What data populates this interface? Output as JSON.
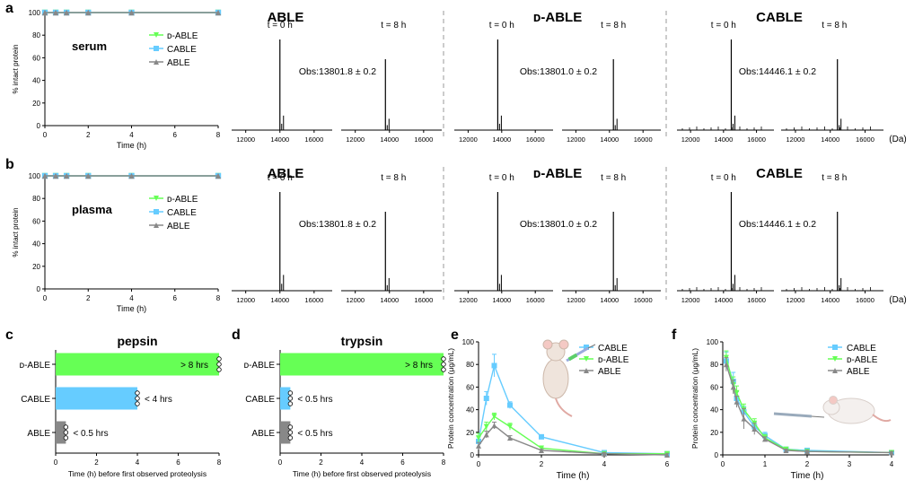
{
  "panel_letters": [
    "a",
    "b",
    "c",
    "d",
    "e",
    "f"
  ],
  "stability_panels": [
    {
      "condition": "serum",
      "legend": [
        "ᴅ-ABLE",
        "CABLE",
        "ABLE"
      ],
      "y_label": "% intact protein",
      "x_label": "Time (h)",
      "y_ticks": [
        "100",
        "80",
        "60",
        "40",
        "20",
        "0"
      ],
      "x_ticks": [
        "0",
        "2",
        "4",
        "6",
        "8"
      ],
      "ms_titles": [
        "ABLE",
        "ᴅ-ABLE",
        "CABLE"
      ],
      "time_labels": [
        "t = 0 h",
        "t = 8 h"
      ],
      "obs": [
        "Obs:13801.8 ± 0.2",
        "Obs:13801.0 ± 0.2",
        "Obs:14446.1 ± 0.2"
      ],
      "ms_ticks": [
        [
          "12000",
          "14000",
          "16000"
        ],
        [
          "12000",
          "14000",
          "16000"
        ],
        [
          "12000",
          "14000",
          "16000"
        ],
        [
          "12000",
          "14000",
          "16000"
        ],
        [
          "12000",
          "14000",
          "16000"
        ],
        [
          "12000",
          "14000",
          "16000"
        ]
      ],
      "unit": "(Da)"
    },
    {
      "condition": "plasma",
      "legend": [
        "ᴅ-ABLE",
        "CABLE",
        "ABLE"
      ],
      "y_label": "% intact protein",
      "x_label": "Time (h)",
      "y_ticks": [
        "100",
        "80",
        "60",
        "40",
        "20",
        "0"
      ],
      "x_ticks": [
        "0",
        "2",
        "4",
        "6",
        "8"
      ],
      "ms_titles": [
        "ABLE",
        "ᴅ-ABLE",
        "CABLE"
      ],
      "time_labels": [
        "t = 0 h",
        "t = 8 h"
      ],
      "obs": [
        "Obs:13801.8 ± 0.2",
        "Obs:13801.0 ± 0.2",
        "Obs:14446.1 ± 0.2"
      ],
      "ms_ticks": [
        [
          "12000",
          "14000",
          "16000"
        ],
        [
          "12000",
          "14000",
          "16000"
        ],
        [
          "12000",
          "14000",
          "16000"
        ],
        [
          "12000",
          "14000",
          "16000"
        ],
        [
          "12000",
          "14000",
          "16000"
        ],
        [
          "12000",
          "14000",
          "16000"
        ]
      ],
      "unit": "(Da)"
    }
  ],
  "colors": {
    "d_able": "#66ff55",
    "cable": "#66ccff",
    "able": "#888888"
  },
  "chart_data": [
    {
      "type": "line",
      "panel": "a",
      "xlabel": "Time (h)",
      "ylabel": "% intact protein",
      "xlim": [
        0,
        8
      ],
      "ylim": [
        0,
        100
      ],
      "x": [
        0,
        0.5,
        1,
        2,
        4,
        8
      ],
      "series": [
        {
          "name": "ᴅ-ABLE",
          "values": [
            100,
            100,
            100,
            100,
            100,
            100
          ]
        },
        {
          "name": "CABLE",
          "values": [
            100,
            100,
            100,
            100,
            100,
            100
          ]
        },
        {
          "name": "ABLE",
          "values": [
            100,
            100,
            100,
            100,
            100,
            100
          ]
        }
      ]
    },
    {
      "type": "line",
      "panel": "b",
      "xlabel": "Time (h)",
      "ylabel": "% intact protein",
      "xlim": [
        0,
        8
      ],
      "ylim": [
        0,
        100
      ],
      "x": [
        0,
        0.5,
        1,
        2,
        4,
        8
      ],
      "series": [
        {
          "name": "ᴅ-ABLE",
          "values": [
            100,
            100,
            100,
            100,
            100,
            100
          ]
        },
        {
          "name": "CABLE",
          "values": [
            100,
            100,
            100,
            100,
            100,
            100
          ]
        },
        {
          "name": "ABLE",
          "values": [
            100,
            100,
            100,
            100,
            100,
            100
          ]
        }
      ]
    },
    {
      "type": "bar",
      "panel": "c",
      "title": "pepsin",
      "xlabel": "Time (h) before first observed proteolysis",
      "xlim": [
        0,
        8
      ],
      "x_ticks": [
        "0",
        "2",
        "4",
        "6",
        "8"
      ],
      "categories": [
        "ᴅ-ABLE",
        "CABLE",
        "ABLE"
      ],
      "values": [
        8,
        4,
        0.5
      ],
      "bar_labels": [
        "> 8 hrs",
        "< 4 hrs",
        "< 0.5 hrs"
      ],
      "replicates": 3
    },
    {
      "type": "bar",
      "panel": "d",
      "title": "trypsin",
      "xlabel": "Time (h) before first observed proteolysis",
      "xlim": [
        0,
        8
      ],
      "x_ticks": [
        "0",
        "2",
        "4",
        "6",
        "8"
      ],
      "categories": [
        "ᴅ-ABLE",
        "CABLE",
        "ABLE"
      ],
      "values": [
        8,
        0.5,
        0.5
      ],
      "bar_labels": [
        "> 8 hrs",
        "< 0.5 hrs",
        "< 0.5 hrs"
      ],
      "replicates": 3
    },
    {
      "type": "line",
      "panel": "e",
      "xlabel": "Time (h)",
      "ylabel": "Protein concentration (μg/mL)",
      "xlim": [
        0,
        6
      ],
      "ylim": [
        0,
        100
      ],
      "x_ticks": [
        "0",
        "2",
        "4",
        "6"
      ],
      "y_ticks": [
        "0",
        "20",
        "40",
        "60",
        "80",
        "100"
      ],
      "x": [
        0,
        0.25,
        0.5,
        1,
        2,
        4,
        6
      ],
      "series": [
        {
          "name": "CABLE",
          "values": [
            12,
            50,
            79,
            44,
            16,
            2,
            1
          ],
          "err": [
            4,
            6,
            10,
            3,
            1,
            1,
            1
          ]
        },
        {
          "name": "ᴅ-ABLE",
          "values": [
            15,
            25,
            34,
            25,
            6,
            1,
            1
          ],
          "err": [
            4,
            4,
            3,
            3,
            1,
            1,
            1
          ]
        },
        {
          "name": "ABLE",
          "values": [
            8,
            18,
            26,
            15,
            4,
            1,
            0
          ],
          "err": [
            3,
            3,
            3,
            2,
            1,
            1,
            1
          ]
        }
      ]
    },
    {
      "type": "line",
      "panel": "f",
      "xlabel": "Time (h)",
      "ylabel": "Protein concentration (μg/mL)",
      "xlim": [
        0,
        4
      ],
      "ylim": [
        0,
        100
      ],
      "x_ticks": [
        "0",
        "1",
        "2",
        "3",
        "4"
      ],
      "y_ticks": [
        "0",
        "20",
        "40",
        "60",
        "80",
        "100"
      ],
      "x": [
        0.083,
        0.25,
        0.33,
        0.5,
        0.75,
        1,
        1.5,
        2,
        4
      ],
      "series": [
        {
          "name": "CABLE",
          "values": [
            83,
            65,
            50,
            38,
            25,
            17,
            5,
            4,
            2
          ],
          "err": [
            8,
            8,
            6,
            5,
            4,
            3,
            1,
            1,
            1
          ]
        },
        {
          "name": "ᴅ-ABLE",
          "values": [
            86,
            62,
            55,
            40,
            28,
            15,
            5,
            3,
            2
          ],
          "err": [
            6,
            7,
            6,
            5,
            4,
            3,
            1,
            1,
            1
          ]
        },
        {
          "name": "ABLE",
          "values": [
            80,
            60,
            47,
            32,
            23,
            14,
            4,
            3,
            2
          ],
          "err": [
            6,
            6,
            5,
            9,
            5,
            2,
            1,
            1,
            1
          ]
        }
      ]
    }
  ]
}
